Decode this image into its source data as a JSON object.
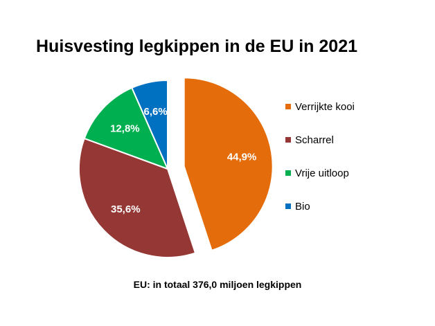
{
  "chart_data": {
    "type": "pie",
    "title": "Huisvesting legkippen in de EU in 2021",
    "categories": [
      "Verrijkte kooi",
      "Scharrel",
      "Vrije uitloop",
      "Bio"
    ],
    "values": [
      44.9,
      35.6,
      12.8,
      6.6
    ],
    "value_labels": [
      "44,9%",
      "35,6%",
      "12,8%",
      "6,6%"
    ],
    "colors": [
      "#E46C0A",
      "#953735",
      "#00B050",
      "#0070C0"
    ],
    "exploded": [
      true,
      false,
      false,
      false
    ],
    "start_angle": "12 o'clock, clockwise",
    "legend_position": "right",
    "footnote": "EU: in totaal 376,0 miljoen legkippen"
  }
}
